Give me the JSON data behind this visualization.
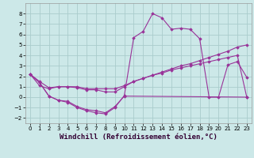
{
  "bg_color": "#cce8e8",
  "grid_color": "#aacccc",
  "line_color": "#993399",
  "xlabel": "Windchill (Refroidissement éolien,°C)",
  "xlim": [
    -0.5,
    23.5
  ],
  "ylim": [
    -2.5,
    9.0
  ],
  "yticks": [
    -2,
    -1,
    0,
    1,
    2,
    3,
    4,
    5,
    6,
    7,
    8
  ],
  "xticks": [
    0,
    1,
    2,
    3,
    4,
    5,
    6,
    7,
    8,
    9,
    10,
    11,
    12,
    13,
    14,
    15,
    16,
    17,
    18,
    19,
    20,
    21,
    22,
    23
  ],
  "series1": [
    [
      0,
      2.2
    ],
    [
      1,
      1.4
    ],
    [
      2,
      0.1
    ],
    [
      3,
      -0.3
    ],
    [
      4,
      -0.5
    ],
    [
      5,
      -1.0
    ],
    [
      6,
      -1.3
    ],
    [
      7,
      -1.5
    ],
    [
      8,
      -1.6
    ],
    [
      9,
      -1.0
    ],
    [
      10,
      0.15
    ],
    [
      11,
      5.7
    ],
    [
      12,
      6.3
    ],
    [
      13,
      8.0
    ],
    [
      14,
      7.6
    ],
    [
      15,
      6.5
    ],
    [
      16,
      6.6
    ],
    [
      17,
      6.5
    ],
    [
      18,
      5.6
    ],
    [
      19,
      0.0
    ],
    [
      20,
      0.0
    ],
    [
      21,
      3.1
    ],
    [
      22,
      3.4
    ],
    [
      23,
      1.9
    ]
  ],
  "series2": [
    [
      0,
      2.2
    ],
    [
      1,
      1.1
    ],
    [
      2,
      0.8
    ],
    [
      3,
      1.0
    ],
    [
      4,
      1.0
    ],
    [
      5,
      1.0
    ],
    [
      6,
      0.8
    ],
    [
      7,
      0.8
    ],
    [
      8,
      0.8
    ],
    [
      9,
      0.8
    ],
    [
      10,
      1.1
    ],
    [
      11,
      1.5
    ],
    [
      12,
      1.8
    ],
    [
      13,
      2.1
    ],
    [
      14,
      2.4
    ],
    [
      15,
      2.7
    ],
    [
      16,
      3.0
    ],
    [
      17,
      3.2
    ],
    [
      18,
      3.5
    ],
    [
      19,
      3.8
    ],
    [
      20,
      4.1
    ],
    [
      21,
      4.4
    ],
    [
      22,
      4.8
    ],
    [
      23,
      5.0
    ]
  ],
  "series3": [
    [
      0,
      2.2
    ],
    [
      1,
      1.5
    ],
    [
      2,
      0.9
    ],
    [
      3,
      1.0
    ],
    [
      4,
      1.0
    ],
    [
      5,
      0.9
    ],
    [
      6,
      0.7
    ],
    [
      7,
      0.7
    ],
    [
      8,
      0.5
    ],
    [
      9,
      0.5
    ],
    [
      10,
      1.0
    ],
    [
      11,
      1.5
    ],
    [
      12,
      1.8
    ],
    [
      13,
      2.1
    ],
    [
      14,
      2.3
    ],
    [
      15,
      2.6
    ],
    [
      16,
      2.8
    ],
    [
      17,
      3.0
    ],
    [
      18,
      3.2
    ],
    [
      19,
      3.4
    ],
    [
      20,
      3.6
    ],
    [
      21,
      3.8
    ],
    [
      22,
      4.0
    ],
    [
      23,
      0.0
    ]
  ],
  "series4": [
    [
      0,
      2.2
    ],
    [
      1,
      1.4
    ],
    [
      2,
      0.1
    ],
    [
      3,
      -0.3
    ],
    [
      4,
      -0.4
    ],
    [
      5,
      -0.9
    ],
    [
      6,
      -1.2
    ],
    [
      7,
      -1.3
    ],
    [
      8,
      -1.5
    ],
    [
      9,
      -0.9
    ],
    [
      10,
      0.1
    ],
    [
      23,
      0.0
    ]
  ]
}
